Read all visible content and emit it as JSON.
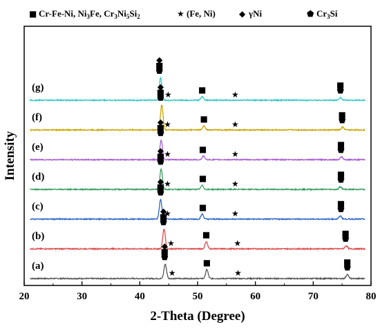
{
  "chart_data": {
    "type": "line",
    "xlabel": "2-Theta (Degree)",
    "ylabel": "Intensity",
    "xlim": [
      20,
      80
    ],
    "xticks": [
      "20",
      "30",
      "40",
      "50",
      "60",
      "70",
      "80"
    ],
    "grid": false,
    "legend": [
      {
        "symbol": "square",
        "label": "Cr-Fe-Ni, Ni",
        "sub": "3",
        "label2": "Fe, Cr",
        "sub2": "3",
        "label3": "Ni",
        "sub3": "5",
        "label4": "Si",
        "sub4": "2"
      },
      {
        "symbol": "star",
        "label": "(Fe, Ni)"
      },
      {
        "symbol": "diamond",
        "label": "γNi"
      },
      {
        "symbol": "pentagon",
        "label": "Cr",
        "sub": "3",
        "label2": "Si"
      }
    ],
    "series": [
      {
        "name": "(a)",
        "color": "#555555",
        "baseline": 0.0,
        "peaks": [
          {
            "x": 44.4,
            "h": 1.6
          },
          {
            "x": 51.6,
            "h": 1.0
          },
          {
            "x": 75.9,
            "h": 0.45
          }
        ],
        "markers": [
          {
            "x": 44.3,
            "stack": [
              "diamond",
              "square",
              "pentagon"
            ]
          },
          {
            "x": 45.6,
            "stack": [
              "star"
            ]
          },
          {
            "x": 51.6,
            "stack": [
              "square"
            ]
          },
          {
            "x": 57.0,
            "stack": [
              "star"
            ]
          },
          {
            "x": 75.9,
            "stack": [
              "square",
              "pentagon"
            ]
          }
        ]
      },
      {
        "name": "(b)",
        "color": "#e04a4a",
        "baseline": 1.0,
        "peaks": [
          {
            "x": 44.2,
            "h": 2.2
          },
          {
            "x": 51.5,
            "h": 0.8
          },
          {
            "x": 75.7,
            "h": 0.35
          }
        ],
        "markers": [
          {
            "x": 44.1,
            "stack": [
              "diamond",
              "square",
              "pentagon"
            ]
          },
          {
            "x": 45.4,
            "stack": [
              "star"
            ]
          },
          {
            "x": 51.5,
            "stack": [
              "square"
            ]
          },
          {
            "x": 56.9,
            "stack": [
              "star"
            ]
          },
          {
            "x": 75.6,
            "stack": [
              "square",
              "pentagon"
            ]
          }
        ]
      },
      {
        "name": "(c)",
        "color": "#2a64c8",
        "baseline": 2.0,
        "peaks": [
          {
            "x": 43.6,
            "h": 2.2
          },
          {
            "x": 50.8,
            "h": 0.55
          },
          {
            "x": 74.7,
            "h": 0.35
          }
        ],
        "markers": [
          {
            "x": 43.6,
            "stack": [
              "diamond",
              "square",
              "pentagon"
            ]
          },
          {
            "x": 44.8,
            "stack": [
              "star"
            ]
          },
          {
            "x": 50.9,
            "stack": [
              "square"
            ]
          },
          {
            "x": 56.5,
            "stack": [
              "star"
            ]
          },
          {
            "x": 74.8,
            "stack": [
              "square",
              "pentagon"
            ]
          }
        ]
      },
      {
        "name": "(d)",
        "color": "#3a9e62",
        "baseline": 3.0,
        "peaks": [
          {
            "x": 43.7,
            "h": 2.3
          },
          {
            "x": 50.8,
            "h": 0.45
          },
          {
            "x": 74.7,
            "h": 0.3
          }
        ],
        "markers": [
          {
            "x": 43.6,
            "stack": [
              "diamond",
              "square",
              "pentagon"
            ]
          },
          {
            "x": 44.8,
            "stack": [
              "star"
            ]
          },
          {
            "x": 50.9,
            "stack": [
              "square"
            ]
          },
          {
            "x": 56.5,
            "stack": [
              "star"
            ]
          },
          {
            "x": 74.8,
            "stack": [
              "square",
              "pentagon"
            ]
          }
        ]
      },
      {
        "name": "(e)",
        "color": "#a75fd0",
        "baseline": 4.0,
        "peaks": [
          {
            "x": 43.7,
            "h": 2.2
          },
          {
            "x": 51.0,
            "h": 0.4
          },
          {
            "x": 74.9,
            "h": 0.3
          }
        ],
        "markers": [
          {
            "x": 43.6,
            "stack": [
              "diamond",
              "square",
              "pentagon"
            ]
          },
          {
            "x": 44.8,
            "stack": [
              "star"
            ]
          },
          {
            "x": 50.9,
            "stack": [
              "square"
            ]
          },
          {
            "x": 56.5,
            "stack": [
              "star"
            ]
          },
          {
            "x": 74.8,
            "stack": [
              "square",
              "pentagon"
            ]
          }
        ]
      },
      {
        "name": "(f)",
        "color": "#c8a400",
        "baseline": 5.0,
        "peaks": [
          {
            "x": 43.8,
            "h": 2.8
          },
          {
            "x": 51.1,
            "h": 0.45
          },
          {
            "x": 75.1,
            "h": 0.3
          }
        ],
        "markers": [
          {
            "x": 43.6,
            "stack": [
              "diamond",
              "square",
              "pentagon"
            ]
          },
          {
            "x": 44.8,
            "stack": [
              "star"
            ]
          },
          {
            "x": 51.1,
            "stack": [
              "square"
            ]
          },
          {
            "x": 56.5,
            "stack": [
              "star"
            ]
          },
          {
            "x": 75.0,
            "stack": [
              "square",
              "pentagon"
            ]
          }
        ]
      },
      {
        "name": "(g)",
        "color": "#2ec6c6",
        "baseline": 6.0,
        "peaks": [
          {
            "x": 43.6,
            "h": 2.5
          },
          {
            "x": 50.8,
            "h": 0.4
          },
          {
            "x": 74.7,
            "h": 0.3
          }
        ],
        "markers": [
          {
            "x": 43.4,
            "stack": [
              "diamond",
              "square",
              "pentagon"
            ]
          },
          {
            "x": 44.9,
            "stack": [
              "star"
            ]
          },
          {
            "x": 50.8,
            "stack": [
              "square"
            ]
          },
          {
            "x": 56.5,
            "stack": [
              "star"
            ]
          },
          {
            "x": 74.7,
            "stack": [
              "square",
              "pentagon"
            ]
          }
        ]
      }
    ]
  }
}
